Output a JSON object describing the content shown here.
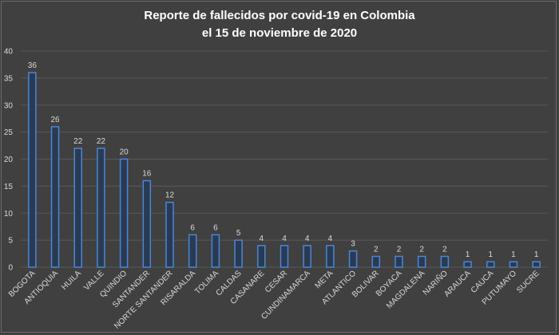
{
  "chart_data": {
    "type": "bar",
    "title": "Reporte de fallecidos por covid-19 en Colombia",
    "subtitle": "el 15 de noviembre de 2020",
    "categories": [
      "BOGOTA",
      "ANTIOQUIA",
      "HUILA",
      "VALLE",
      "QUINDIO",
      "SANTANDER",
      "NORTE SANTANDER",
      "RISARALDA",
      "TOLIMA",
      "CALDAS",
      "CASANARE",
      "CESAR",
      "CUNDINAMARCA",
      "META",
      "ATLANTICO",
      "BOLIVAR",
      "BOYACA",
      "MAGDALENA",
      "NARIÑO",
      "ARAUCA",
      "CAUCA",
      "PUTUMAYO",
      "SUCRE"
    ],
    "values": [
      36,
      26,
      22,
      22,
      20,
      16,
      12,
      6,
      6,
      5,
      4,
      4,
      4,
      4,
      3,
      2,
      2,
      2,
      2,
      1,
      1,
      1,
      1
    ],
    "ylim": [
      0,
      40
    ],
    "yticks": [
      0,
      5,
      10,
      15,
      20,
      25,
      30,
      35,
      40
    ],
    "grid": true,
    "data_labels": true,
    "legend": "none"
  },
  "colors": {
    "background": "#404040",
    "grid": "#595959",
    "bar_fill": "#2a3a52",
    "bar_stroke": "#4a86d4",
    "text": "#d9d9d9"
  }
}
